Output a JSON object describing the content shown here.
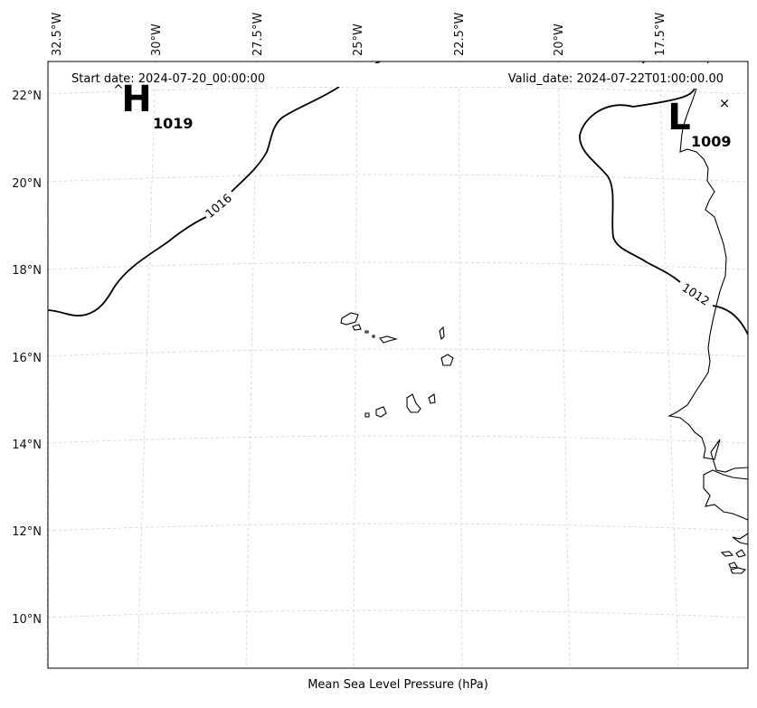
{
  "map": {
    "start_date_label": "Start date: 2024-07-20_00:00:00",
    "valid_date_label": "Valid_date: 2024-07-22T01:00:00.00",
    "xlabel": "Mean Sea Level Pressure (hPa)",
    "longitude_ticks": [
      "32.5°W",
      "30°W",
      "27.5°W",
      "25°W",
      "22.5°W",
      "20°W",
      "17.5°W"
    ],
    "latitude_ticks": [
      "22°N",
      "20°N",
      "18°N",
      "16°N",
      "14°N",
      "12°N",
      "10°N"
    ],
    "high_center": {
      "letter": "H",
      "value": "1019"
    },
    "low_center": {
      "letter": "L",
      "value": "1009"
    },
    "isobar_labels": [
      "1016",
      "1012"
    ],
    "colors": {
      "isobar": "#000000",
      "grid": "#cfcfcf",
      "coast": "#000000"
    }
  }
}
